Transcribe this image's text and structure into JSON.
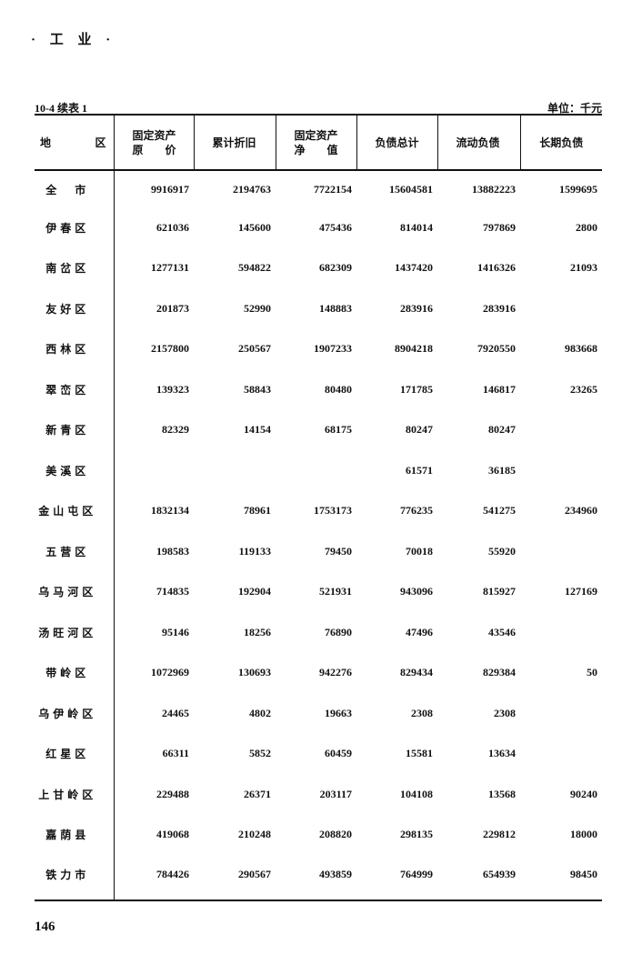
{
  "running_header": "· 工 业 ·",
  "table": {
    "number": "10-4  续表 1",
    "unit": "单位：千元",
    "columns": [
      {
        "line1": "地",
        "line2": "区"
      },
      {
        "line1": "固定资产",
        "line2": "原　　价"
      },
      {
        "line1": "累计折旧",
        "line2": ""
      },
      {
        "line1": "固定资产",
        "line2": "净　　值"
      },
      {
        "line1": "负债总计",
        "line2": ""
      },
      {
        "line1": "流动负债",
        "line2": ""
      },
      {
        "line1": "长期负债",
        "line2": ""
      }
    ],
    "rows": [
      [
        "全　市",
        "9916917",
        "2194763",
        "7722154",
        "15604581",
        "13882223",
        "1599695"
      ],
      [
        "伊春区",
        "621036",
        "145600",
        "475436",
        "814014",
        "797869",
        "2800"
      ],
      [
        "南岔区",
        "1277131",
        "594822",
        "682309",
        "1437420",
        "1416326",
        "21093"
      ],
      [
        "友好区",
        "201873",
        "52990",
        "148883",
        "283916",
        "283916",
        ""
      ],
      [
        "西林区",
        "2157800",
        "250567",
        "1907233",
        "8904218",
        "7920550",
        "983668"
      ],
      [
        "翠峦区",
        "139323",
        "58843",
        "80480",
        "171785",
        "146817",
        "23265"
      ],
      [
        "新青区",
        "82329",
        "14154",
        "68175",
        "80247",
        "80247",
        ""
      ],
      [
        "美溪区",
        "",
        "",
        "",
        "61571",
        "36185",
        ""
      ],
      [
        "金山屯区",
        "1832134",
        "78961",
        "1753173",
        "776235",
        "541275",
        "234960"
      ],
      [
        "五营区",
        "198583",
        "119133",
        "79450",
        "70018",
        "55920",
        ""
      ],
      [
        "乌马河区",
        "714835",
        "192904",
        "521931",
        "943096",
        "815927",
        "127169"
      ],
      [
        "汤旺河区",
        "95146",
        "18256",
        "76890",
        "47496",
        "43546",
        ""
      ],
      [
        "带岭区",
        "1072969",
        "130693",
        "942276",
        "829434",
        "829384",
        "50"
      ],
      [
        "乌伊岭区",
        "24465",
        "4802",
        "19663",
        "2308",
        "2308",
        ""
      ],
      [
        "红星区",
        "66311",
        "5852",
        "60459",
        "15581",
        "13634",
        ""
      ],
      [
        "上甘岭区",
        "229488",
        "26371",
        "203117",
        "104108",
        "13568",
        "90240"
      ],
      [
        "嘉荫县",
        "419068",
        "210248",
        "208820",
        "298135",
        "229812",
        "18000"
      ],
      [
        "铁力市",
        "784426",
        "290567",
        "493859",
        "764999",
        "654939",
        "98450"
      ]
    ]
  },
  "page_number": "146"
}
